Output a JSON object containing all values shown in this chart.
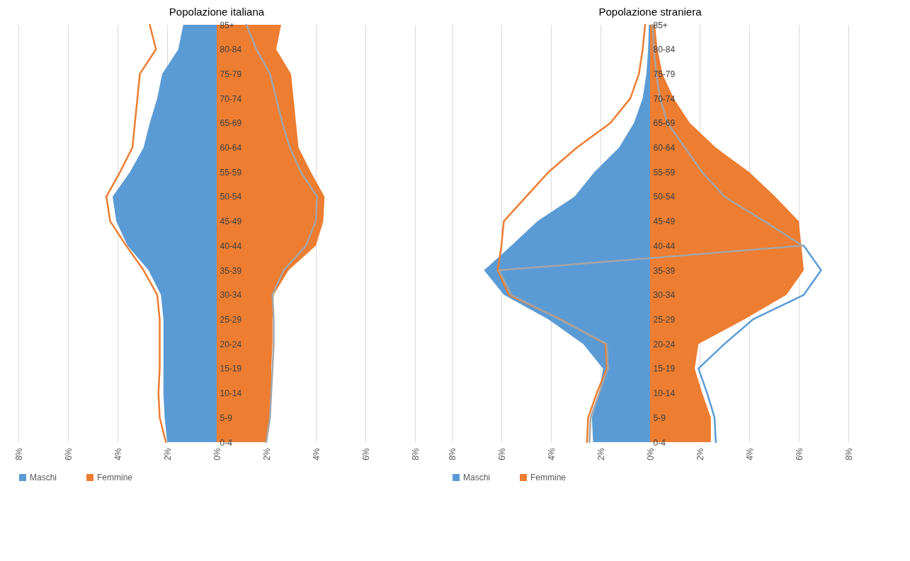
{
  "chart_data": [
    {
      "type": "area",
      "orientation": "horizontal",
      "title": "Popolazione italiana",
      "categories": [
        "85+",
        "80-84",
        "75-79",
        "70-74",
        "65-69",
        "60-64",
        "55-59",
        "50-54",
        "45-49",
        "40-44",
        "35-39",
        "30-34",
        "25-29",
        "20-24",
        "15-19",
        "10-14",
        "5-9",
        "0-4"
      ],
      "series": [
        {
          "name": "Maschi",
          "color": "#5b9bd5",
          "values": [
            -1.35,
            -1.55,
            -2.2,
            -2.4,
            -2.7,
            -2.95,
            -3.5,
            -4.2,
            -4.05,
            -3.6,
            -2.75,
            -2.25,
            -2.15,
            -2.15,
            -2.15,
            -2.15,
            -2.1,
            -2.0
          ]
        },
        {
          "name": "Femmine",
          "color": "#ed7d31",
          "values": [
            2.6,
            2.4,
            3.0,
            3.1,
            3.2,
            3.3,
            3.8,
            4.35,
            4.3,
            4.0,
            2.9,
            2.3,
            2.25,
            2.25,
            2.2,
            2.2,
            2.15,
            2.0
          ]
        },
        {
          "type": "line",
          "color": "#ed7d31",
          "values": [
            -2.7,
            -2.45,
            -3.1,
            -3.2,
            -3.3,
            -3.4,
            -3.9,
            -4.45,
            -4.3,
            -3.65,
            -2.95,
            -2.4,
            -2.3,
            -2.3,
            -2.3,
            -2.35,
            -2.3,
            -2.05
          ]
        },
        {
          "type": "line",
          "color": "#a5a5a5",
          "values": [
            1.2,
            1.6,
            2.15,
            2.4,
            2.65,
            2.95,
            3.4,
            4.05,
            4.0,
            3.6,
            2.7,
            2.25,
            2.3,
            2.3,
            2.25,
            2.2,
            2.15,
            2.0
          ]
        }
      ],
      "xlim": [
        -8,
        8
      ],
      "xticks": [
        {
          "value": -8,
          "label": "8%"
        },
        {
          "value": -6,
          "label": "6%"
        },
        {
          "value": -4,
          "label": "4%"
        },
        {
          "value": -2,
          "label": "2%"
        },
        {
          "value": 0,
          "label": "0%"
        },
        {
          "value": 2,
          "label": "2%"
        },
        {
          "value": 4,
          "label": "4%"
        },
        {
          "value": 6,
          "label": "6%"
        },
        {
          "value": 8,
          "label": "8%"
        }
      ],
      "grid": "x",
      "legend": "bottom"
    },
    {
      "type": "area",
      "orientation": "horizontal",
      "title": "Popolazione straniera",
      "categories": [
        "85+",
        "80-84",
        "75-79",
        "70-74",
        "65-69",
        "60-64",
        "55-59",
        "50-54",
        "45-49",
        "40-44",
        "35-39",
        "30-34",
        "25-29",
        "20-24",
        "15-19",
        "10-14",
        "5-9",
        "0-4"
      ],
      "series": [
        {
          "name": "Maschi",
          "color": "#5b9bd5",
          "values": [
            -0.05,
            -0.08,
            -0.15,
            -0.3,
            -0.65,
            -1.25,
            -2.25,
            -3.05,
            -4.55,
            -5.6,
            -6.7,
            -5.9,
            -4.1,
            -2.7,
            -1.9,
            -2.05,
            -2.35,
            -2.3
          ]
        },
        {
          "name": "Femmine",
          "color": "#ed7d31",
          "values": [
            0.2,
            0.3,
            0.5,
            0.95,
            1.6,
            2.65,
            4.0,
            5.05,
            6.0,
            6.1,
            6.2,
            5.5,
            3.8,
            1.95,
            1.8,
            2.1,
            2.45,
            2.45
          ]
        },
        {
          "type": "line",
          "color": "#ed7d31",
          "values": [
            -0.2,
            -0.3,
            -0.45,
            -0.8,
            -1.6,
            -2.95,
            -4.1,
            -5.0,
            -5.9,
            -6.0,
            -6.15,
            -5.7,
            -3.6,
            -1.8,
            -1.75,
            -2.15,
            -2.5,
            -2.55
          ]
        },
        {
          "type": "line",
          "color": "#5b9bd5",
          "values": [
            null,
            null,
            null,
            null,
            null,
            null,
            null,
            null,
            null,
            6.2,
            6.9,
            6.2,
            4.15,
            3.0,
            1.95,
            2.3,
            2.6,
            2.65
          ]
        },
        {
          "type": "line",
          "color": "#a5a5a5",
          "values": [
            0.1,
            0.15,
            0.25,
            0.4,
            0.7,
            1.4,
            2.1,
            3.0,
            4.6,
            6.15,
            -6.1,
            -5.6,
            -3.65,
            -1.75,
            -1.7,
            -2.05,
            -2.4,
            -2.45
          ]
        }
      ],
      "xlim": [
        -8,
        8
      ],
      "xticks": [
        {
          "value": -8,
          "label": "8%"
        },
        {
          "value": -6,
          "label": "6%"
        },
        {
          "value": -4,
          "label": "4%"
        },
        {
          "value": -2,
          "label": "2%"
        },
        {
          "value": 0,
          "label": "0%"
        },
        {
          "value": 2,
          "label": "2%"
        },
        {
          "value": 4,
          "label": "4%"
        },
        {
          "value": 6,
          "label": "6%"
        },
        {
          "value": 8,
          "label": "8%"
        }
      ],
      "grid": "x",
      "legend": "bottom"
    }
  ]
}
